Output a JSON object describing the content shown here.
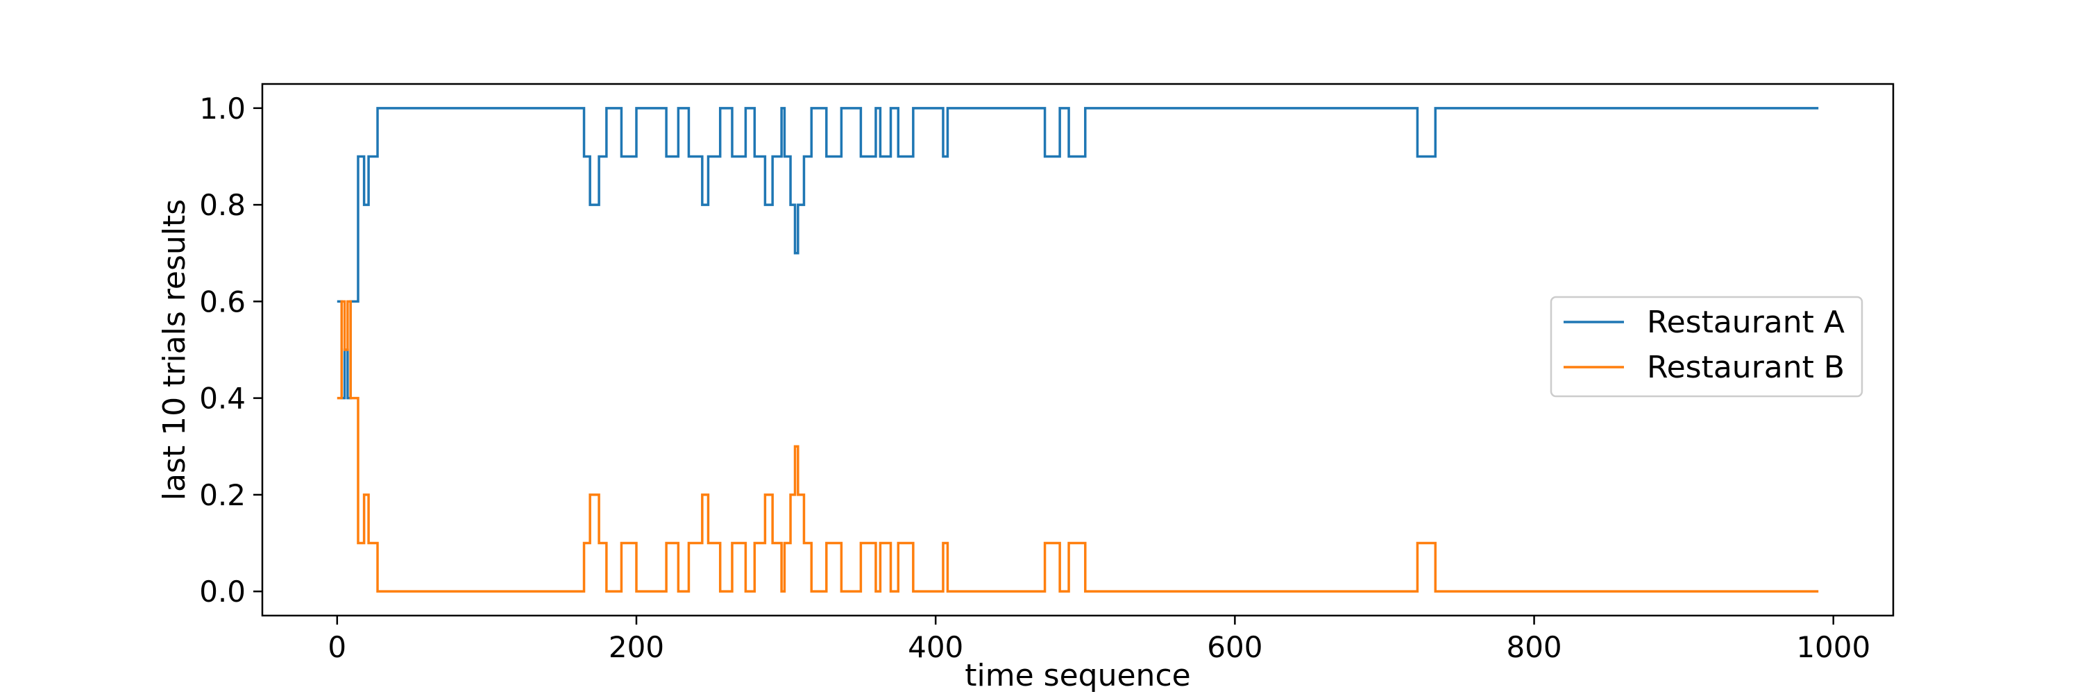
{
  "chart_data": {
    "type": "line",
    "title": "",
    "xlabel": "time sequence",
    "ylabel": "last 10 trials results",
    "xlim": [
      -50,
      1040
    ],
    "ylim": [
      -0.05,
      1.05
    ],
    "x_ticks": [
      0,
      200,
      400,
      600,
      800,
      1000
    ],
    "y_ticks": [
      0.0,
      0.2,
      0.4,
      0.6,
      0.8,
      1.0
    ],
    "x_tick_labels": [
      "0",
      "200",
      "400",
      "600",
      "800",
      "1000"
    ],
    "y_tick_labels": [
      "0.0",
      "0.2",
      "0.4",
      "0.6",
      "0.8",
      "1.0"
    ],
    "grid": false,
    "legend_position": "center-right",
    "step": "post",
    "series": [
      {
        "name": "Restaurant A",
        "color": "#1f77b4",
        "points": [
          [
            0,
            0.6
          ],
          [
            3,
            0.4
          ],
          [
            5,
            0.5
          ],
          [
            7,
            0.4
          ],
          [
            9,
            0.6
          ],
          [
            14,
            0.9
          ],
          [
            18,
            0.8
          ],
          [
            21,
            0.9
          ],
          [
            27,
            1.0
          ],
          [
            165,
            0.9
          ],
          [
            169,
            0.8
          ],
          [
            175,
            0.9
          ],
          [
            180,
            1.0
          ],
          [
            190,
            0.9
          ],
          [
            200,
            1.0
          ],
          [
            220,
            0.9
          ],
          [
            228,
            1.0
          ],
          [
            235,
            0.9
          ],
          [
            244,
            0.8
          ],
          [
            248,
            0.9
          ],
          [
            256,
            1.0
          ],
          [
            264,
            0.9
          ],
          [
            273,
            1.0
          ],
          [
            279,
            0.9
          ],
          [
            286,
            0.8
          ],
          [
            291,
            0.9
          ],
          [
            297,
            1.0
          ],
          [
            299,
            0.9
          ],
          [
            303,
            0.8
          ],
          [
            306,
            0.7
          ],
          [
            308,
            0.8
          ],
          [
            312,
            0.9
          ],
          [
            317,
            1.0
          ],
          [
            327,
            0.9
          ],
          [
            337,
            1.0
          ],
          [
            350,
            0.9
          ],
          [
            360,
            1.0
          ],
          [
            363,
            0.9
          ],
          [
            370,
            1.0
          ],
          [
            375,
            0.9
          ],
          [
            385,
            1.0
          ],
          [
            405,
            0.9
          ],
          [
            408,
            1.0
          ],
          [
            473,
            0.9
          ],
          [
            483,
            1.0
          ],
          [
            489,
            0.9
          ],
          [
            500,
            1.0
          ],
          [
            722,
            0.9
          ],
          [
            734,
            1.0
          ],
          [
            990,
            1.0
          ]
        ]
      },
      {
        "name": "Restaurant B",
        "color": "#ff7f0e",
        "points": [
          [
            0,
            0.4
          ],
          [
            3,
            0.6
          ],
          [
            5,
            0.5
          ],
          [
            7,
            0.6
          ],
          [
            9,
            0.4
          ],
          [
            14,
            0.1
          ],
          [
            18,
            0.2
          ],
          [
            21,
            0.1
          ],
          [
            27,
            0.0
          ],
          [
            165,
            0.1
          ],
          [
            169,
            0.2
          ],
          [
            175,
            0.1
          ],
          [
            180,
            0.0
          ],
          [
            190,
            0.1
          ],
          [
            200,
            0.0
          ],
          [
            220,
            0.1
          ],
          [
            228,
            0.0
          ],
          [
            235,
            0.1
          ],
          [
            244,
            0.2
          ],
          [
            248,
            0.1
          ],
          [
            256,
            0.0
          ],
          [
            264,
            0.1
          ],
          [
            273,
            0.0
          ],
          [
            279,
            0.1
          ],
          [
            286,
            0.2
          ],
          [
            291,
            0.1
          ],
          [
            297,
            0.0
          ],
          [
            299,
            0.1
          ],
          [
            303,
            0.2
          ],
          [
            306,
            0.3
          ],
          [
            308,
            0.2
          ],
          [
            312,
            0.1
          ],
          [
            317,
            0.0
          ],
          [
            327,
            0.1
          ],
          [
            337,
            0.0
          ],
          [
            350,
            0.1
          ],
          [
            360,
            0.0
          ],
          [
            363,
            0.1
          ],
          [
            370,
            0.0
          ],
          [
            375,
            0.1
          ],
          [
            385,
            0.0
          ],
          [
            405,
            0.1
          ],
          [
            408,
            0.0
          ],
          [
            473,
            0.1
          ],
          [
            483,
            0.0
          ],
          [
            489,
            0.1
          ],
          [
            500,
            0.0
          ],
          [
            722,
            0.1
          ],
          [
            734,
            0.0
          ],
          [
            990,
            0.0
          ]
        ]
      }
    ]
  }
}
